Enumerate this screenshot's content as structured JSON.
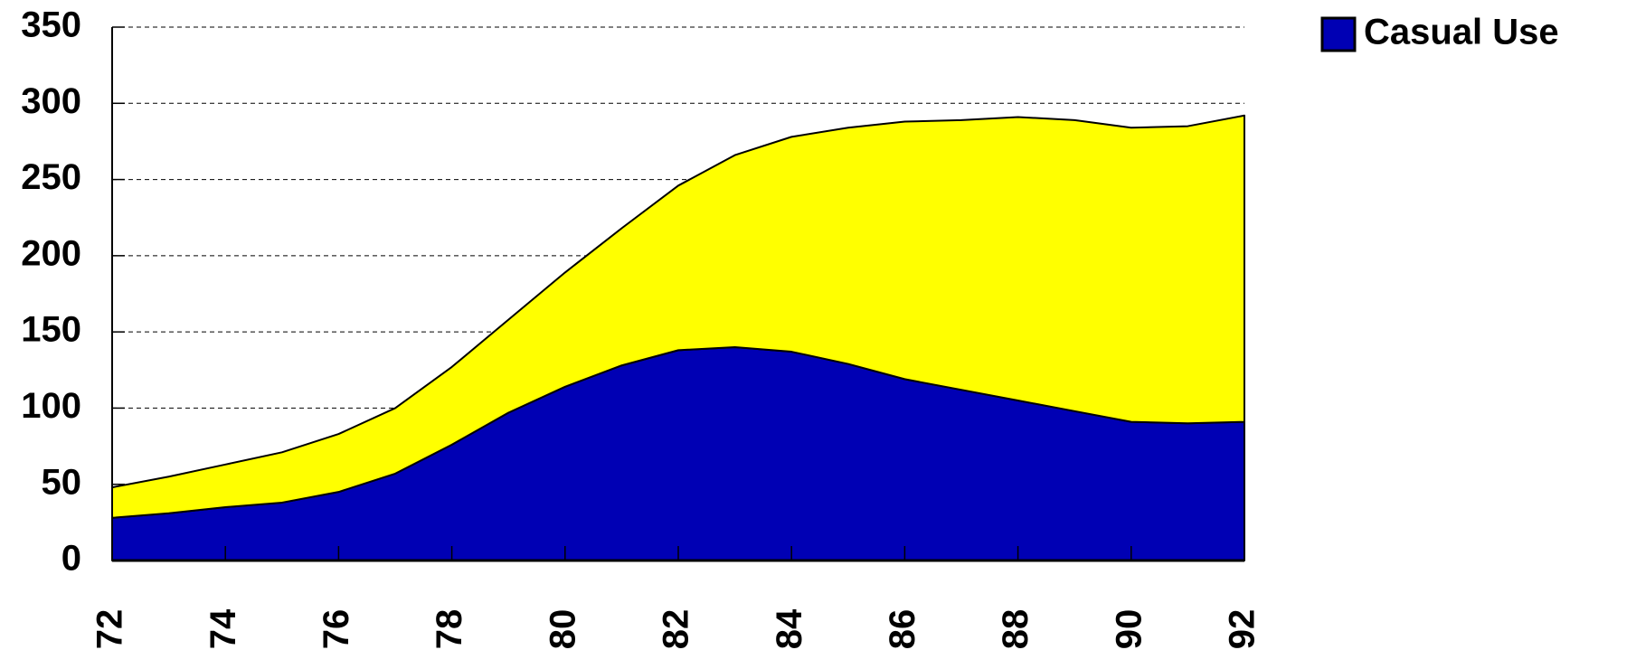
{
  "chart_data": {
    "type": "stacked_area",
    "x": [
      72,
      73,
      74,
      75,
      76,
      77,
      78,
      79,
      80,
      81,
      82,
      83,
      84,
      85,
      86,
      87,
      88,
      89,
      90,
      91,
      92
    ],
    "xlim": [
      72,
      92
    ],
    "xticks": [
      72,
      74,
      76,
      78,
      80,
      82,
      84,
      86,
      88,
      90,
      92
    ],
    "ylim": [
      0,
      350
    ],
    "yticks": [
      0,
      50,
      100,
      150,
      200,
      250,
      300,
      350
    ],
    "grid": true,
    "legend": "top-right",
    "series": [
      {
        "name": "Casual Use",
        "color": "#0000b4",
        "values": [
          28,
          31,
          35,
          38,
          45,
          57,
          76,
          97,
          114,
          128,
          138,
          140,
          137,
          129,
          119,
          112,
          105,
          98,
          91,
          90,
          91
        ]
      },
      {
        "color": "#ffff00",
        "values": [
          20,
          24,
          28,
          33,
          38,
          43,
          51,
          61,
          75,
          90,
          108,
          126,
          141,
          155,
          169,
          177,
          186,
          191,
          193,
          195,
          201
        ]
      }
    ]
  }
}
